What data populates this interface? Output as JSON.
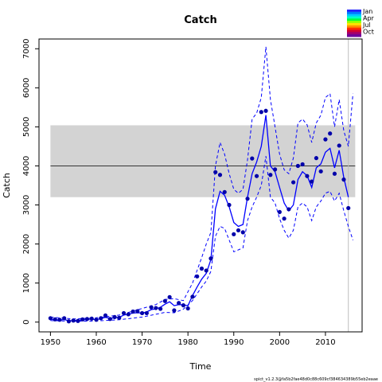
{
  "chart_data": {
    "type": "line",
    "title": "Catch",
    "xlabel": "Time",
    "ylabel": "Catch",
    "xlim": [
      1947.5,
      2018
    ],
    "ylim": [
      -250,
      7250
    ],
    "x_ticks": [
      1950,
      1960,
      1970,
      1980,
      1990,
      2000,
      2010
    ],
    "y_ticks": [
      0,
      1000,
      2000,
      3000,
      4000,
      5000,
      6000,
      7000
    ],
    "grid": false,
    "reference_band": {
      "x_start": 1950,
      "x_end": 2016.5,
      "lower": 3200,
      "upper": 5040,
      "color": "#d3d3d3"
    },
    "reference_line": {
      "y": 4000,
      "x_start": 1950,
      "x_end": 2016.5,
      "color": "#000000"
    },
    "vertical_line": {
      "x": 2015,
      "color": "#bebebe"
    },
    "observed_catch": {
      "color": "#0000aa",
      "x": [
        1950,
        1951,
        1952,
        1953,
        1954,
        1955,
        1956,
        1957,
        1958,
        1959,
        1960,
        1961,
        1962,
        1963,
        1964,
        1965,
        1966,
        1967,
        1968,
        1969,
        1970,
        1971,
        1972,
        1973,
        1974,
        1975,
        1976,
        1977,
        1978,
        1979,
        1980,
        1981,
        1982,
        1983,
        1984,
        1985,
        1986,
        1987,
        1988,
        1989,
        1990,
        1991,
        1992,
        1993,
        1994,
        1995,
        1996,
        1997,
        1998,
        1999,
        2000,
        2001,
        2002,
        2003,
        2004,
        2005,
        2006,
        2007,
        2008,
        2009,
        2010,
        2011,
        2012,
        2013,
        2014,
        2015
      ],
      "y": [
        100,
        70,
        60,
        100,
        20,
        40,
        30,
        70,
        80,
        90,
        60,
        100,
        170,
        80,
        130,
        110,
        230,
        200,
        270,
        280,
        230,
        230,
        380,
        360,
        340,
        540,
        640,
        300,
        490,
        430,
        350,
        650,
        1170,
        1370,
        1320,
        1630,
        3840,
        3770,
        3330,
        3000,
        2250,
        2350,
        2300,
        3160,
        4190,
        3740,
        5380,
        5410,
        3770,
        3910,
        2820,
        2650,
        2890,
        3580,
        4000,
        4040,
        3740,
        3600,
        4200,
        3860,
        4680,
        4830,
        3800,
        4520,
        3650,
        2920
      ]
    },
    "estimated_catch": {
      "color": "#0000ff",
      "x": [
        1950,
        1951,
        1952,
        1953,
        1954,
        1955,
        1956,
        1957,
        1958,
        1959,
        1960,
        1961,
        1962,
        1963,
        1964,
        1965,
        1966,
        1967,
        1968,
        1969,
        1970,
        1971,
        1972,
        1973,
        1974,
        1975,
        1976,
        1977,
        1978,
        1979,
        1980,
        1981,
        1982,
        1983,
        1984,
        1985,
        1986,
        1987,
        1988,
        1989,
        1990,
        1991,
        1992,
        1993,
        1994,
        1995,
        1996,
        1997,
        1998,
        1999,
        2000,
        2001,
        2002,
        2003,
        2004,
        2005,
        2006,
        2007,
        2008,
        2009,
        2010,
        2011,
        2012,
        2013,
        2014,
        2015
      ],
      "y": [
        80,
        60,
        50,
        70,
        30,
        40,
        40,
        60,
        70,
        80,
        60,
        90,
        120,
        100,
        110,
        120,
        180,
        200,
        230,
        240,
        230,
        260,
        320,
        340,
        380,
        460,
        520,
        420,
        450,
        440,
        420,
        680,
        900,
        1100,
        1250,
        1600,
        2900,
        3350,
        3250,
        2950,
        2550,
        2450,
        2500,
        3200,
        3800,
        4100,
        4500,
        5300,
        4000,
        3850,
        3450,
        3050,
        2850,
        3000,
        3650,
        3850,
        3750,
        3450,
        3950,
        4050,
        4350,
        4450,
        3950,
        4400,
        3700,
        3200
      ]
    },
    "ci_upper": {
      "x": [
        1950,
        1955,
        1960,
        1965,
        1970,
        1973,
        1975,
        1977,
        1979,
        1981,
        1983,
        1984,
        1985,
        1986,
        1987,
        1988,
        1989,
        1990,
        1991,
        1992,
        1993,
        1994,
        1995,
        1996,
        1997,
        1998,
        1999,
        2000,
        2001,
        2002,
        2003,
        2004,
        2005,
        2006,
        2007,
        2008,
        2009,
        2010,
        2011,
        2012,
        2013,
        2014,
        2015,
        2016
      ],
      "y": [
        130,
        80,
        110,
        180,
        350,
        450,
        580,
        600,
        550,
        1000,
        1650,
        2000,
        2300,
        4000,
        4600,
        4300,
        3800,
        3400,
        3300,
        3400,
        4150,
        5200,
        5350,
        5750,
        7050,
        5700,
        5000,
        4300,
        3900,
        3800,
        4200,
        5100,
        5200,
        5050,
        4600,
        5100,
        5300,
        5750,
        5850,
        5000,
        5700,
        4900,
        4500,
        5850
      ]
    },
    "ci_lower": {
      "x": [
        1950,
        1955,
        1960,
        1965,
        1970,
        1973,
        1975,
        1977,
        1979,
        1981,
        1983,
        1984,
        1985,
        1986,
        1987,
        1988,
        1989,
        1990,
        1991,
        1992,
        1993,
        1994,
        1995,
        1996,
        1997,
        1998,
        1999,
        2000,
        2001,
        2002,
        2003,
        2004,
        2005,
        2006,
        2007,
        2008,
        2009,
        2010,
        2011,
        2012,
        2013,
        2014,
        2015,
        2016
      ],
      "y": [
        40,
        20,
        30,
        60,
        130,
        200,
        250,
        240,
        330,
        550,
        900,
        1050,
        1300,
        2200,
        2450,
        2400,
        2100,
        1800,
        1850,
        1900,
        2600,
        2950,
        3200,
        3500,
        4250,
        3200,
        3050,
        2650,
        2350,
        2150,
        2350,
        2950,
        3050,
        2950,
        2600,
        2950,
        3100,
        3300,
        3350,
        3100,
        3300,
        2850,
        2450,
        2100
      ]
    },
    "legend": {
      "position": "top-right",
      "labels": [
        "Jan",
        "Apr",
        "Jul",
        "Oct"
      ],
      "colors": [
        "#2424ff",
        "#0077ff",
        "#00c8ff",
        "#00ffc8",
        "#00ff3c",
        "#9bff00",
        "#ffe100",
        "#ff9100",
        "#ff2d00",
        "#d20032",
        "#a0006e",
        "#6e009b"
      ]
    },
    "footer": "spict_v1.2.3@fa5b2fae48d0c88c609cf384634389b55eb2eaae"
  }
}
